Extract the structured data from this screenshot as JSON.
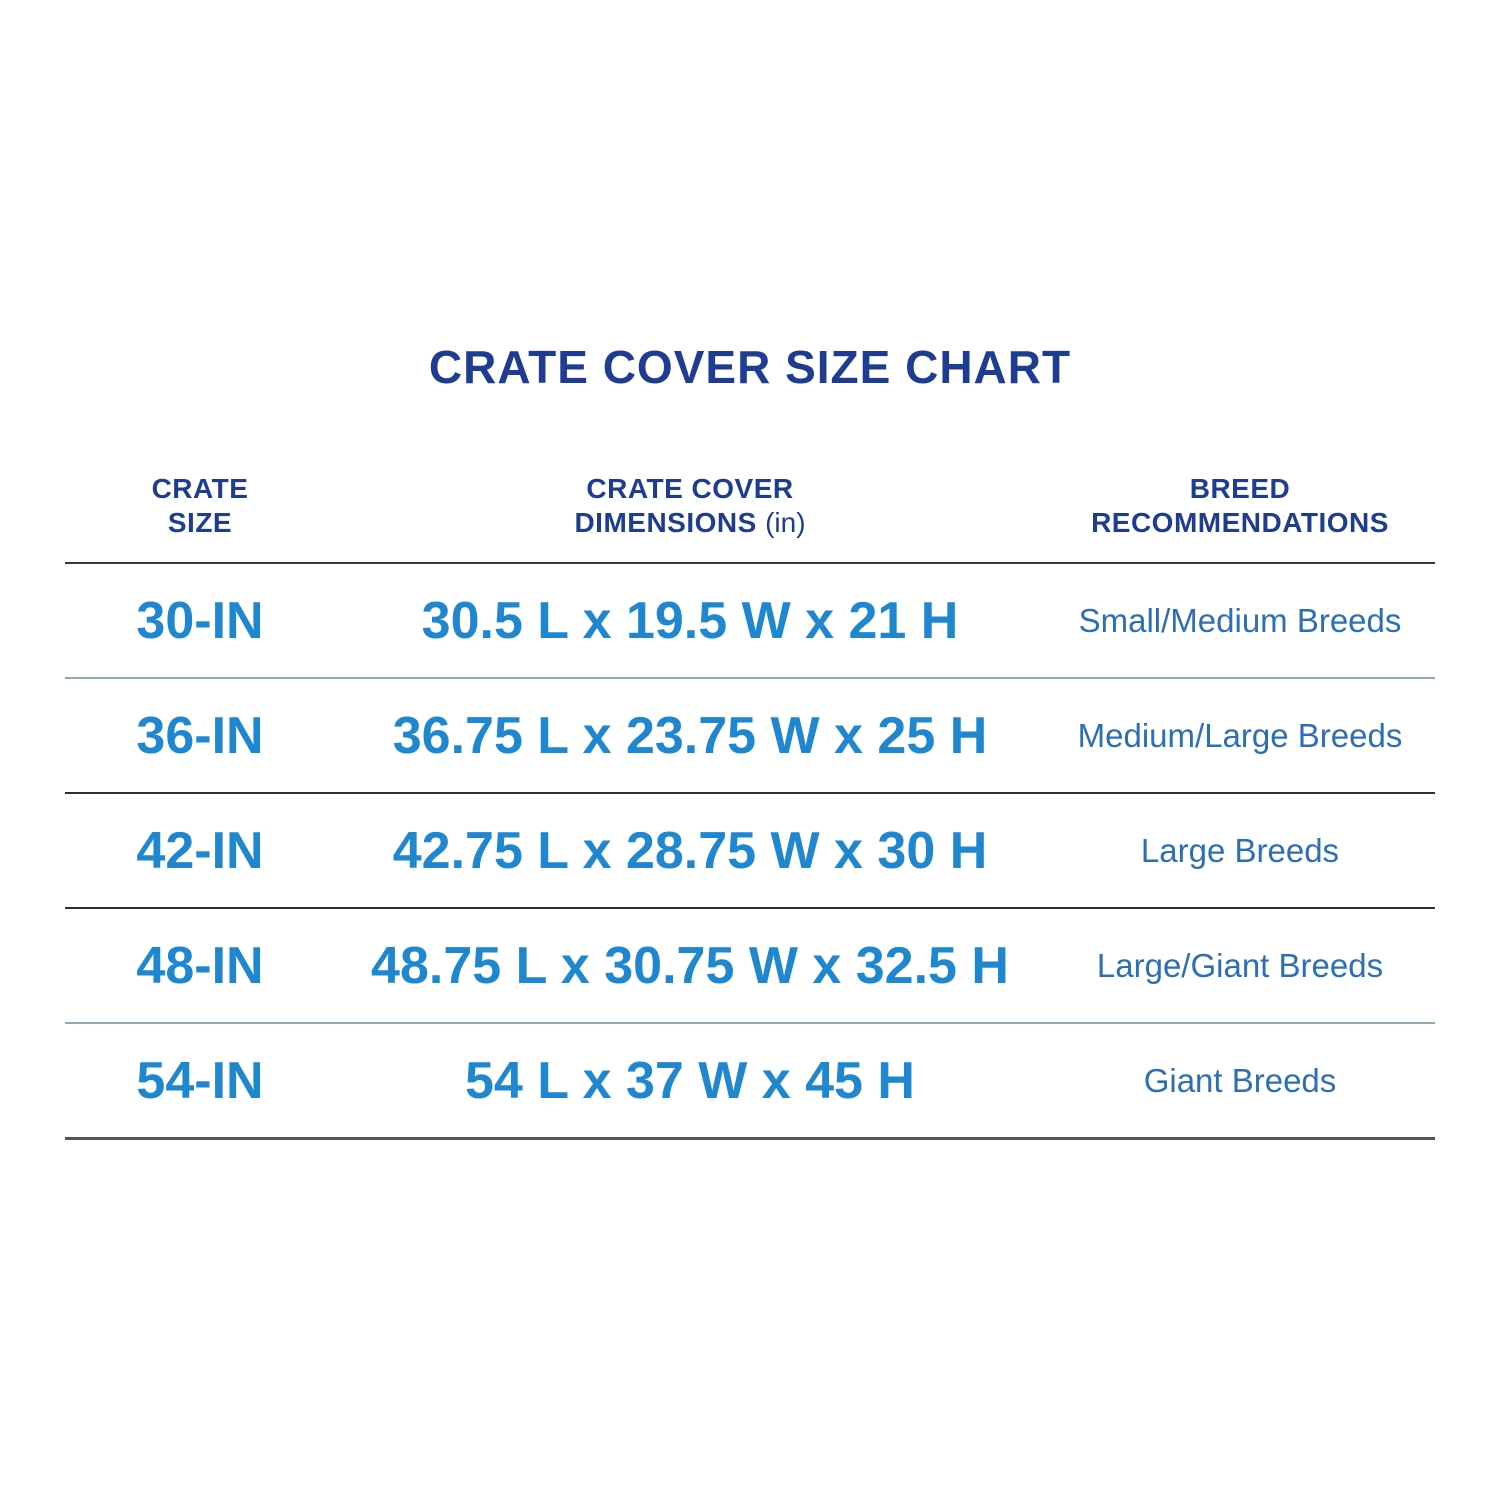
{
  "title": "CRATE COVER SIZE CHART",
  "colors": {
    "title_navy": "#1e3c92",
    "data_azure": "#1f86d0",
    "breed_blue": "#2d6fb5",
    "divider_dark": "#3a3a3a",
    "divider_light": "#8da8b6"
  },
  "header": {
    "col1_line1": "CRATE",
    "col1_line2": "SIZE",
    "col2_line1": "CRATE COVER",
    "col2_line2_bold": "DIMENSIONS",
    "col2_line2_light": "(in)",
    "col3_line1": "BREED",
    "col3_line2": "RECOMMENDATIONS"
  },
  "rows": [
    {
      "size": "30-IN",
      "dimensions": "30.5 L x 19.5 W x 21 H",
      "breeds": "Small/Medium Breeds"
    },
    {
      "size": "36-IN",
      "dimensions": "36.75 L x 23.75 W x 25 H",
      "breeds": "Medium/Large Breeds"
    },
    {
      "size": "42-IN",
      "dimensions": "42.75 L x 28.75 W x 30 H",
      "breeds": "Large Breeds"
    },
    {
      "size": "48-IN",
      "dimensions": "48.75 L x 30.75 W x 32.5 H",
      "breeds": "Large/Giant Breeds"
    },
    {
      "size": "54-IN",
      "dimensions": "54 L x 37 W x 45 H",
      "breeds": "Giant Breeds"
    }
  ],
  "chart_data": {
    "type": "table",
    "title": "CRATE COVER SIZE CHART",
    "columns": [
      "CRATE SIZE",
      "CRATE COVER DIMENSIONS (in)",
      "BREED RECOMMENDATIONS"
    ],
    "rows": [
      [
        "30-IN",
        "30.5 L x 19.5 W x 21 H",
        "Small/Medium Breeds"
      ],
      [
        "36-IN",
        "36.75 L x 23.75 W x 25 H",
        "Medium/Large Breeds"
      ],
      [
        "42-IN",
        "42.75 L x 28.75 W x 30 H",
        "Large Breeds"
      ],
      [
        "48-IN",
        "48.75 L x 30.75 W x 32.5 H",
        "Large/Giant Breeds"
      ],
      [
        "54-IN",
        "54 L x 37 W x 45 H",
        "Giant Breeds"
      ]
    ]
  }
}
